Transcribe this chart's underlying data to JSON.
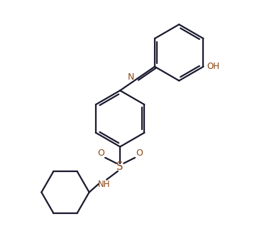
{
  "line_color": "#1a1a2e",
  "heteroatom_color": "#8B4513",
  "background": "#ffffff",
  "bond_lw": 1.6,
  "figsize": [
    3.62,
    3.18
  ],
  "dpi": 100,
  "xlim": [
    0,
    9
  ],
  "ylim": [
    0,
    7.9
  ]
}
